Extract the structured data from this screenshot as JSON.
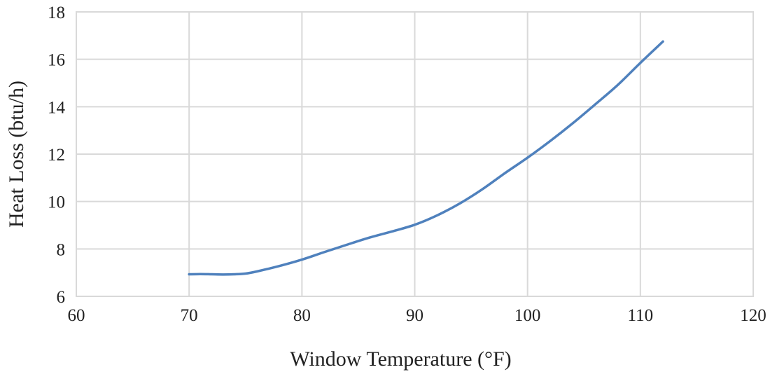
{
  "chart_data": {
    "type": "line",
    "title": "",
    "xlabel": "Window Temperature (°F)",
    "ylabel": "Heat Loss (btu/h)",
    "xlim": [
      60,
      120
    ],
    "ylim": [
      6,
      18
    ],
    "x_ticks": [
      60,
      70,
      80,
      90,
      100,
      110,
      120
    ],
    "y_ticks": [
      6,
      8,
      10,
      12,
      14,
      16,
      18
    ],
    "grid": true,
    "legend": "none",
    "series": [
      {
        "color": "#4f81bd",
        "x": [
          70,
          71,
          72,
          73,
          74,
          75,
          76,
          78,
          80,
          82,
          84,
          86,
          88,
          90,
          92,
          94,
          96,
          98,
          100,
          102,
          104,
          106,
          108,
          110,
          112
        ],
        "y": [
          6.93,
          6.94,
          6.93,
          6.92,
          6.93,
          6.96,
          7.05,
          7.28,
          7.55,
          7.87,
          8.18,
          8.48,
          8.74,
          9.02,
          9.42,
          9.92,
          10.52,
          11.2,
          11.85,
          12.55,
          13.3,
          14.1,
          14.92,
          15.85,
          16.75
        ]
      }
    ]
  }
}
